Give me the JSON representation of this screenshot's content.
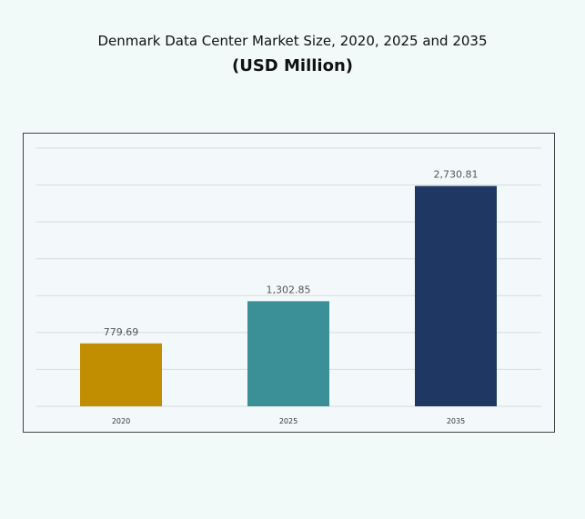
{
  "chart_data": {
    "type": "bar",
    "title": "Denmark Data Center Market Size, 2020, 2025 and 2035",
    "subtitle": "(USD Million)",
    "categories": [
      "2020",
      "2025",
      "2035"
    ],
    "values": [
      779.69,
      1302.85,
      2730.81
    ],
    "data_labels": [
      "779.69",
      "1,302.85",
      "2,730.81"
    ],
    "colors": [
      "#c08e00",
      "#3b8f96",
      "#1f3763"
    ],
    "xlabel": "",
    "ylabel": "",
    "ylim": [
      0,
      3200
    ],
    "grid": true,
    "legend": "none"
  }
}
